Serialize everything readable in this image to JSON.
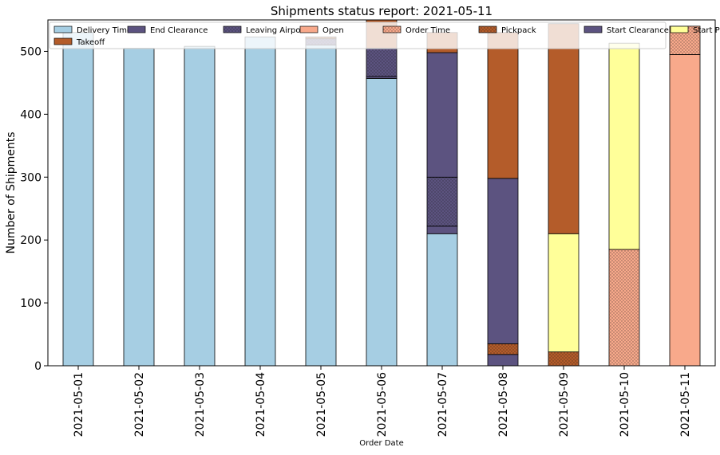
{
  "chart_data": {
    "type": "bar",
    "stacked": true,
    "title": "Shipments status report: 2021-05-11",
    "xlabel": "Order Date",
    "ylabel": "Number of Shipments",
    "ylim": [
      0,
      550
    ],
    "yticks": [
      0,
      100,
      200,
      300,
      400,
      500
    ],
    "grid": false,
    "legend_position": "top",
    "categories": [
      "2021-05-01",
      "2021-05-02",
      "2021-05-03",
      "2021-05-04",
      "2021-05-05",
      "2021-05-06",
      "2021-05-07",
      "2021-05-08",
      "2021-05-09",
      "2021-05-10",
      "2021-05-11"
    ],
    "series": [
      {
        "name": "Delivery Time",
        "color": "#a6cee3",
        "pattern": "none",
        "values": [
          530,
          505,
          508,
          523,
          510,
          457,
          210,
          0,
          0,
          0,
          0
        ]
      },
      {
        "name": "End Clearance",
        "color": "#5c5380",
        "pattern": "none",
        "values": [
          0,
          0,
          0,
          0,
          0,
          3,
          12,
          18,
          0,
          0,
          0
        ]
      },
      {
        "name": "Leaving Airport",
        "color": "#5c5380",
        "pattern": "dots",
        "values": [
          0,
          0,
          0,
          0,
          10,
          45,
          78,
          0,
          0,
          0,
          0
        ]
      },
      {
        "name": "Open",
        "color": "#f8a98b",
        "pattern": "none",
        "values": [
          0,
          0,
          0,
          0,
          0,
          0,
          0,
          0,
          0,
          0,
          495
        ]
      },
      {
        "name": "Order Time",
        "color": "#f8a98b",
        "pattern": "dots",
        "values": [
          0,
          0,
          0,
          0,
          0,
          0,
          0,
          0,
          0,
          185,
          45
        ]
      },
      {
        "name": "Pickpack",
        "color": "#b45c2a",
        "pattern": "dots",
        "values": [
          0,
          0,
          0,
          0,
          3,
          0,
          0,
          17,
          22,
          0,
          0
        ]
      },
      {
        "name": "Start Clearance",
        "color": "#5c5380",
        "pattern": "none",
        "values": [
          0,
          0,
          0,
          0,
          0,
          0,
          198,
          263,
          0,
          0,
          0
        ]
      },
      {
        "name": "Start PickPack",
        "color": "#ffff99",
        "pattern": "none",
        "values": [
          0,
          0,
          0,
          0,
          0,
          0,
          0,
          0,
          188,
          328,
          0
        ]
      },
      {
        "name": "Takeoff",
        "color": "#b45c2a",
        "pattern": "none",
        "values": [
          0,
          0,
          0,
          0,
          0,
          45,
          32,
          232,
          334,
          0,
          0
        ]
      }
    ]
  }
}
